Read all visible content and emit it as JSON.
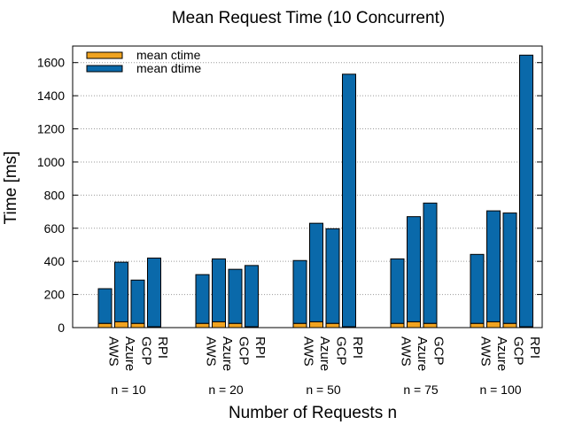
{
  "chart_data": {
    "type": "bar",
    "stacked": true,
    "title": "Mean Request Time (10 Concurrent)",
    "xlabel": "Number of Requests n",
    "ylabel": "Time [ms]",
    "ylim": [
      0,
      1700
    ],
    "yticks": [
      0,
      200,
      400,
      600,
      800,
      1000,
      1200,
      1400,
      1600
    ],
    "grid": "horizontal dotted",
    "legend_placement": "top-left",
    "colors": {
      "mean ctime": "#F0A320",
      "mean dtime": "#0A69AA"
    },
    "groups": [
      {
        "label": "n = 10",
        "bars": [
          {
            "category": "AWS",
            "ctime": 25,
            "dtime": 210
          },
          {
            "category": "Azure",
            "ctime": 35,
            "dtime": 360
          },
          {
            "category": "GCP",
            "ctime": 25,
            "dtime": 262
          },
          {
            "category": "RPI",
            "ctime": 5,
            "dtime": 415
          }
        ]
      },
      {
        "label": "n = 20",
        "bars": [
          {
            "category": "AWS",
            "ctime": 25,
            "dtime": 295
          },
          {
            "category": "Azure",
            "ctime": 35,
            "dtime": 380
          },
          {
            "category": "GCP",
            "ctime": 25,
            "dtime": 327
          },
          {
            "category": "RPI",
            "ctime": 5,
            "dtime": 370
          }
        ]
      },
      {
        "label": "n = 50",
        "bars": [
          {
            "category": "AWS",
            "ctime": 25,
            "dtime": 380
          },
          {
            "category": "Azure",
            "ctime": 35,
            "dtime": 595
          },
          {
            "category": "GCP",
            "ctime": 25,
            "dtime": 572
          },
          {
            "category": "RPI",
            "ctime": 5,
            "dtime": 1525
          }
        ]
      },
      {
        "label": "n = 75",
        "bars": [
          {
            "category": "AWS",
            "ctime": 25,
            "dtime": 390
          },
          {
            "category": "Azure",
            "ctime": 35,
            "dtime": 635
          },
          {
            "category": "GCP",
            "ctime": 25,
            "dtime": 727
          }
        ]
      },
      {
        "label": "n = 100",
        "bars": [
          {
            "category": "AWS",
            "ctime": 25,
            "dtime": 417
          },
          {
            "category": "Azure",
            "ctime": 35,
            "dtime": 670
          },
          {
            "category": "GCP",
            "ctime": 25,
            "dtime": 667
          },
          {
            "category": "RPI",
            "ctime": 5,
            "dtime": 1640
          }
        ]
      }
    ],
    "series": [
      {
        "name": "mean ctime",
        "key": "ctime"
      },
      {
        "name": "mean dtime",
        "key": "dtime"
      }
    ]
  }
}
